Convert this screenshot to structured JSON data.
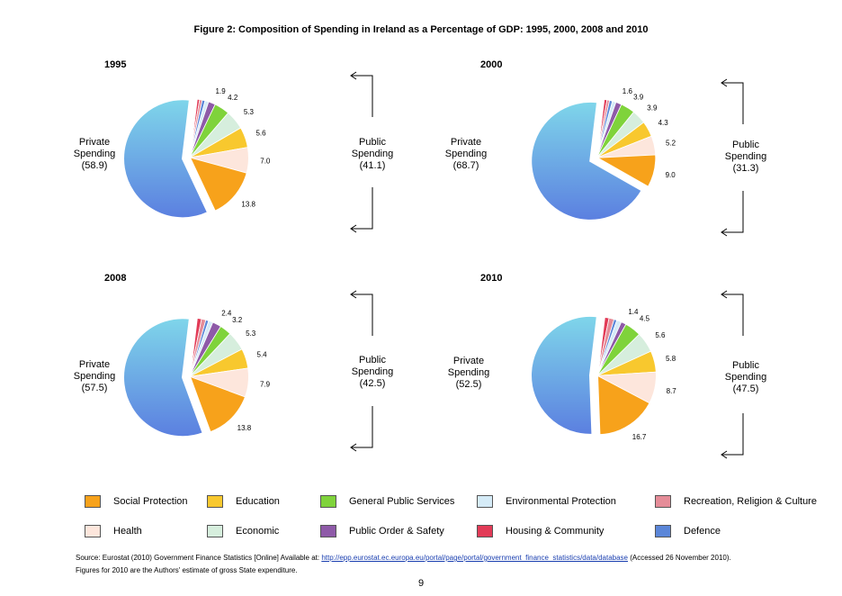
{
  "title": "Figure 2: Composition of Spending in Ireland as a Percentage of GDP: 1995, 2000, 2008 and 2010",
  "chart_data": [
    {
      "type": "pie",
      "year": "1995",
      "private": {
        "label": "Private",
        "label2": "Spending",
        "value_text": "(58.9)",
        "value": 58.9
      },
      "public": {
        "label": "Public",
        "label2": "Spending",
        "value_text": "(41.1)",
        "value": 41.1
      },
      "slices": [
        {
          "category": "Social Protection",
          "value": 13.8,
          "label": "13.8"
        },
        {
          "category": "Health",
          "value": 7.0,
          "label": "7.0"
        },
        {
          "category": "Education",
          "value": 5.6,
          "label": "5.6"
        },
        {
          "category": "Economic",
          "value": 5.3,
          "label": "5.3"
        },
        {
          "category": "General Public Services",
          "value": 4.2,
          "label": "4.2"
        },
        {
          "category": "Public Order & Safety",
          "value": 1.9,
          "label": "1.9"
        },
        {
          "category": "Environmental Protection",
          "value": 1.0,
          "label": ""
        },
        {
          "category": "Defence",
          "value": 0.8,
          "label": ""
        },
        {
          "category": "Recreation, Religion & Culture",
          "value": 0.7,
          "label": ""
        },
        {
          "category": "Housing & Community",
          "value": 0.8,
          "label": ""
        }
      ]
    },
    {
      "type": "pie",
      "year": "2000",
      "private": {
        "label": "Private",
        "label2": "Spending",
        "value_text": "(68.7)",
        "value": 68.7
      },
      "public": {
        "label": "Public",
        "label2": "Spending",
        "value_text": "(31.3)",
        "value": 31.3
      },
      "slices": [
        {
          "category": "Social Protection",
          "value": 9.0,
          "label": "9.0"
        },
        {
          "category": "Health",
          "value": 5.2,
          "label": "5.2"
        },
        {
          "category": "Education",
          "value": 4.3,
          "label": "4.3"
        },
        {
          "category": "Economic",
          "value": 3.9,
          "label": "3.9"
        },
        {
          "category": "General Public Services",
          "value": 3.9,
          "label": "3.9"
        },
        {
          "category": "Public Order & Safety",
          "value": 1.6,
          "label": "1.6"
        },
        {
          "category": "Environmental Protection",
          "value": 1.0,
          "label": ""
        },
        {
          "category": "Defence",
          "value": 0.8,
          "label": ""
        },
        {
          "category": "Recreation, Religion & Culture",
          "value": 0.7,
          "label": ""
        },
        {
          "category": "Housing & Community",
          "value": 0.9,
          "label": ""
        }
      ]
    },
    {
      "type": "pie",
      "year": "2008",
      "private": {
        "label": "Private",
        "label2": "Spending",
        "value_text": "(57.5)",
        "value": 57.5
      },
      "public": {
        "label": "Public",
        "label2": "Spending",
        "value_text": "(42.5)",
        "value": 42.5
      },
      "slices": [
        {
          "category": "Social Protection",
          "value": 13.8,
          "label": "13.8"
        },
        {
          "category": "Health",
          "value": 7.9,
          "label": "7.9"
        },
        {
          "category": "Education",
          "value": 5.4,
          "label": "5.4"
        },
        {
          "category": "Economic",
          "value": 5.3,
          "label": "5.3"
        },
        {
          "category": "General Public Services",
          "value": 3.2,
          "label": "3.2"
        },
        {
          "category": "Public Order & Safety",
          "value": 2.4,
          "label": "2.4"
        },
        {
          "category": "Environmental Protection",
          "value": 1.2,
          "label": ""
        },
        {
          "category": "Defence",
          "value": 0.8,
          "label": ""
        },
        {
          "category": "Recreation, Religion & Culture",
          "value": 1.2,
          "label": ""
        },
        {
          "category": "Housing & Community",
          "value": 1.3,
          "label": ""
        }
      ]
    },
    {
      "type": "pie",
      "year": "2010",
      "private": {
        "label": "Private",
        "label2": "Spending",
        "value_text": "(52.5)",
        "value": 52.5
      },
      "public": {
        "label": "Public",
        "label2": "Spending",
        "value_text": "(47.5)",
        "value": 47.5
      },
      "slices": [
        {
          "category": "Social Protection",
          "value": 16.7,
          "label": "16.7"
        },
        {
          "category": "Health",
          "value": 8.7,
          "label": "8.7"
        },
        {
          "category": "Education",
          "value": 5.8,
          "label": "5.8"
        },
        {
          "category": "Economic",
          "value": 5.6,
          "label": "5.6"
        },
        {
          "category": "General Public Services",
          "value": 4.5,
          "label": "4.5"
        },
        {
          "category": "Public Order & Safety",
          "value": 1.4,
          "label": "1.4"
        },
        {
          "category": "Environmental Protection",
          "value": 1.3,
          "label": ""
        },
        {
          "category": "Defence",
          "value": 0.8,
          "label": ""
        },
        {
          "category": "Recreation, Religion & Culture",
          "value": 1.4,
          "label": ""
        },
        {
          "category": "Housing & Community",
          "value": 1.3,
          "label": ""
        }
      ]
    }
  ],
  "colors": {
    "Social Protection": "#f7a21b",
    "Health": "#fde6dc",
    "Education": "#f8c82e",
    "Economic": "#d6eedd",
    "General Public Services": "#7fd33b",
    "Public Order & Safety": "#8e5aa8",
    "Environmental Protection": "#d5ebf7",
    "Defence": "#5b86d8",
    "Recreation, Religion & Culture": "#e58c98",
    "Housing & Community": "#e23b57",
    "Private": "#6fa6e6"
  },
  "legend": [
    {
      "label": "Social Protection",
      "key": "Social Protection"
    },
    {
      "label": "Education",
      "key": "Education"
    },
    {
      "label": "General Public Services",
      "key": "General Public Services"
    },
    {
      "label": "Environmental Protection",
      "key": "Environmental Protection"
    },
    {
      "label": "Recreation, Religion & Culture",
      "key": "Recreation, Religion & Culture"
    },
    {
      "label": "Health",
      "key": "Health"
    },
    {
      "label": "Economic",
      "key": "Economic"
    },
    {
      "label": "Public Order & Safety",
      "key": "Public Order & Safety"
    },
    {
      "label": "Housing & Community",
      "key": "Housing & Community"
    },
    {
      "label": "Defence",
      "key": "Defence"
    }
  ],
  "source": {
    "prefix": "Source: Eurostat (2010) Government Finance Statistics [Online] Available at: ",
    "link": "http://epp.eurostat.ec.europa.eu/portal/page/portal/government_finance_statistics/data/database",
    "suffix": " (Accessed 26 November 2010).",
    "note": "Figures for 2010 are the Authors' estimate of gross State expenditure."
  },
  "page_number": "9"
}
